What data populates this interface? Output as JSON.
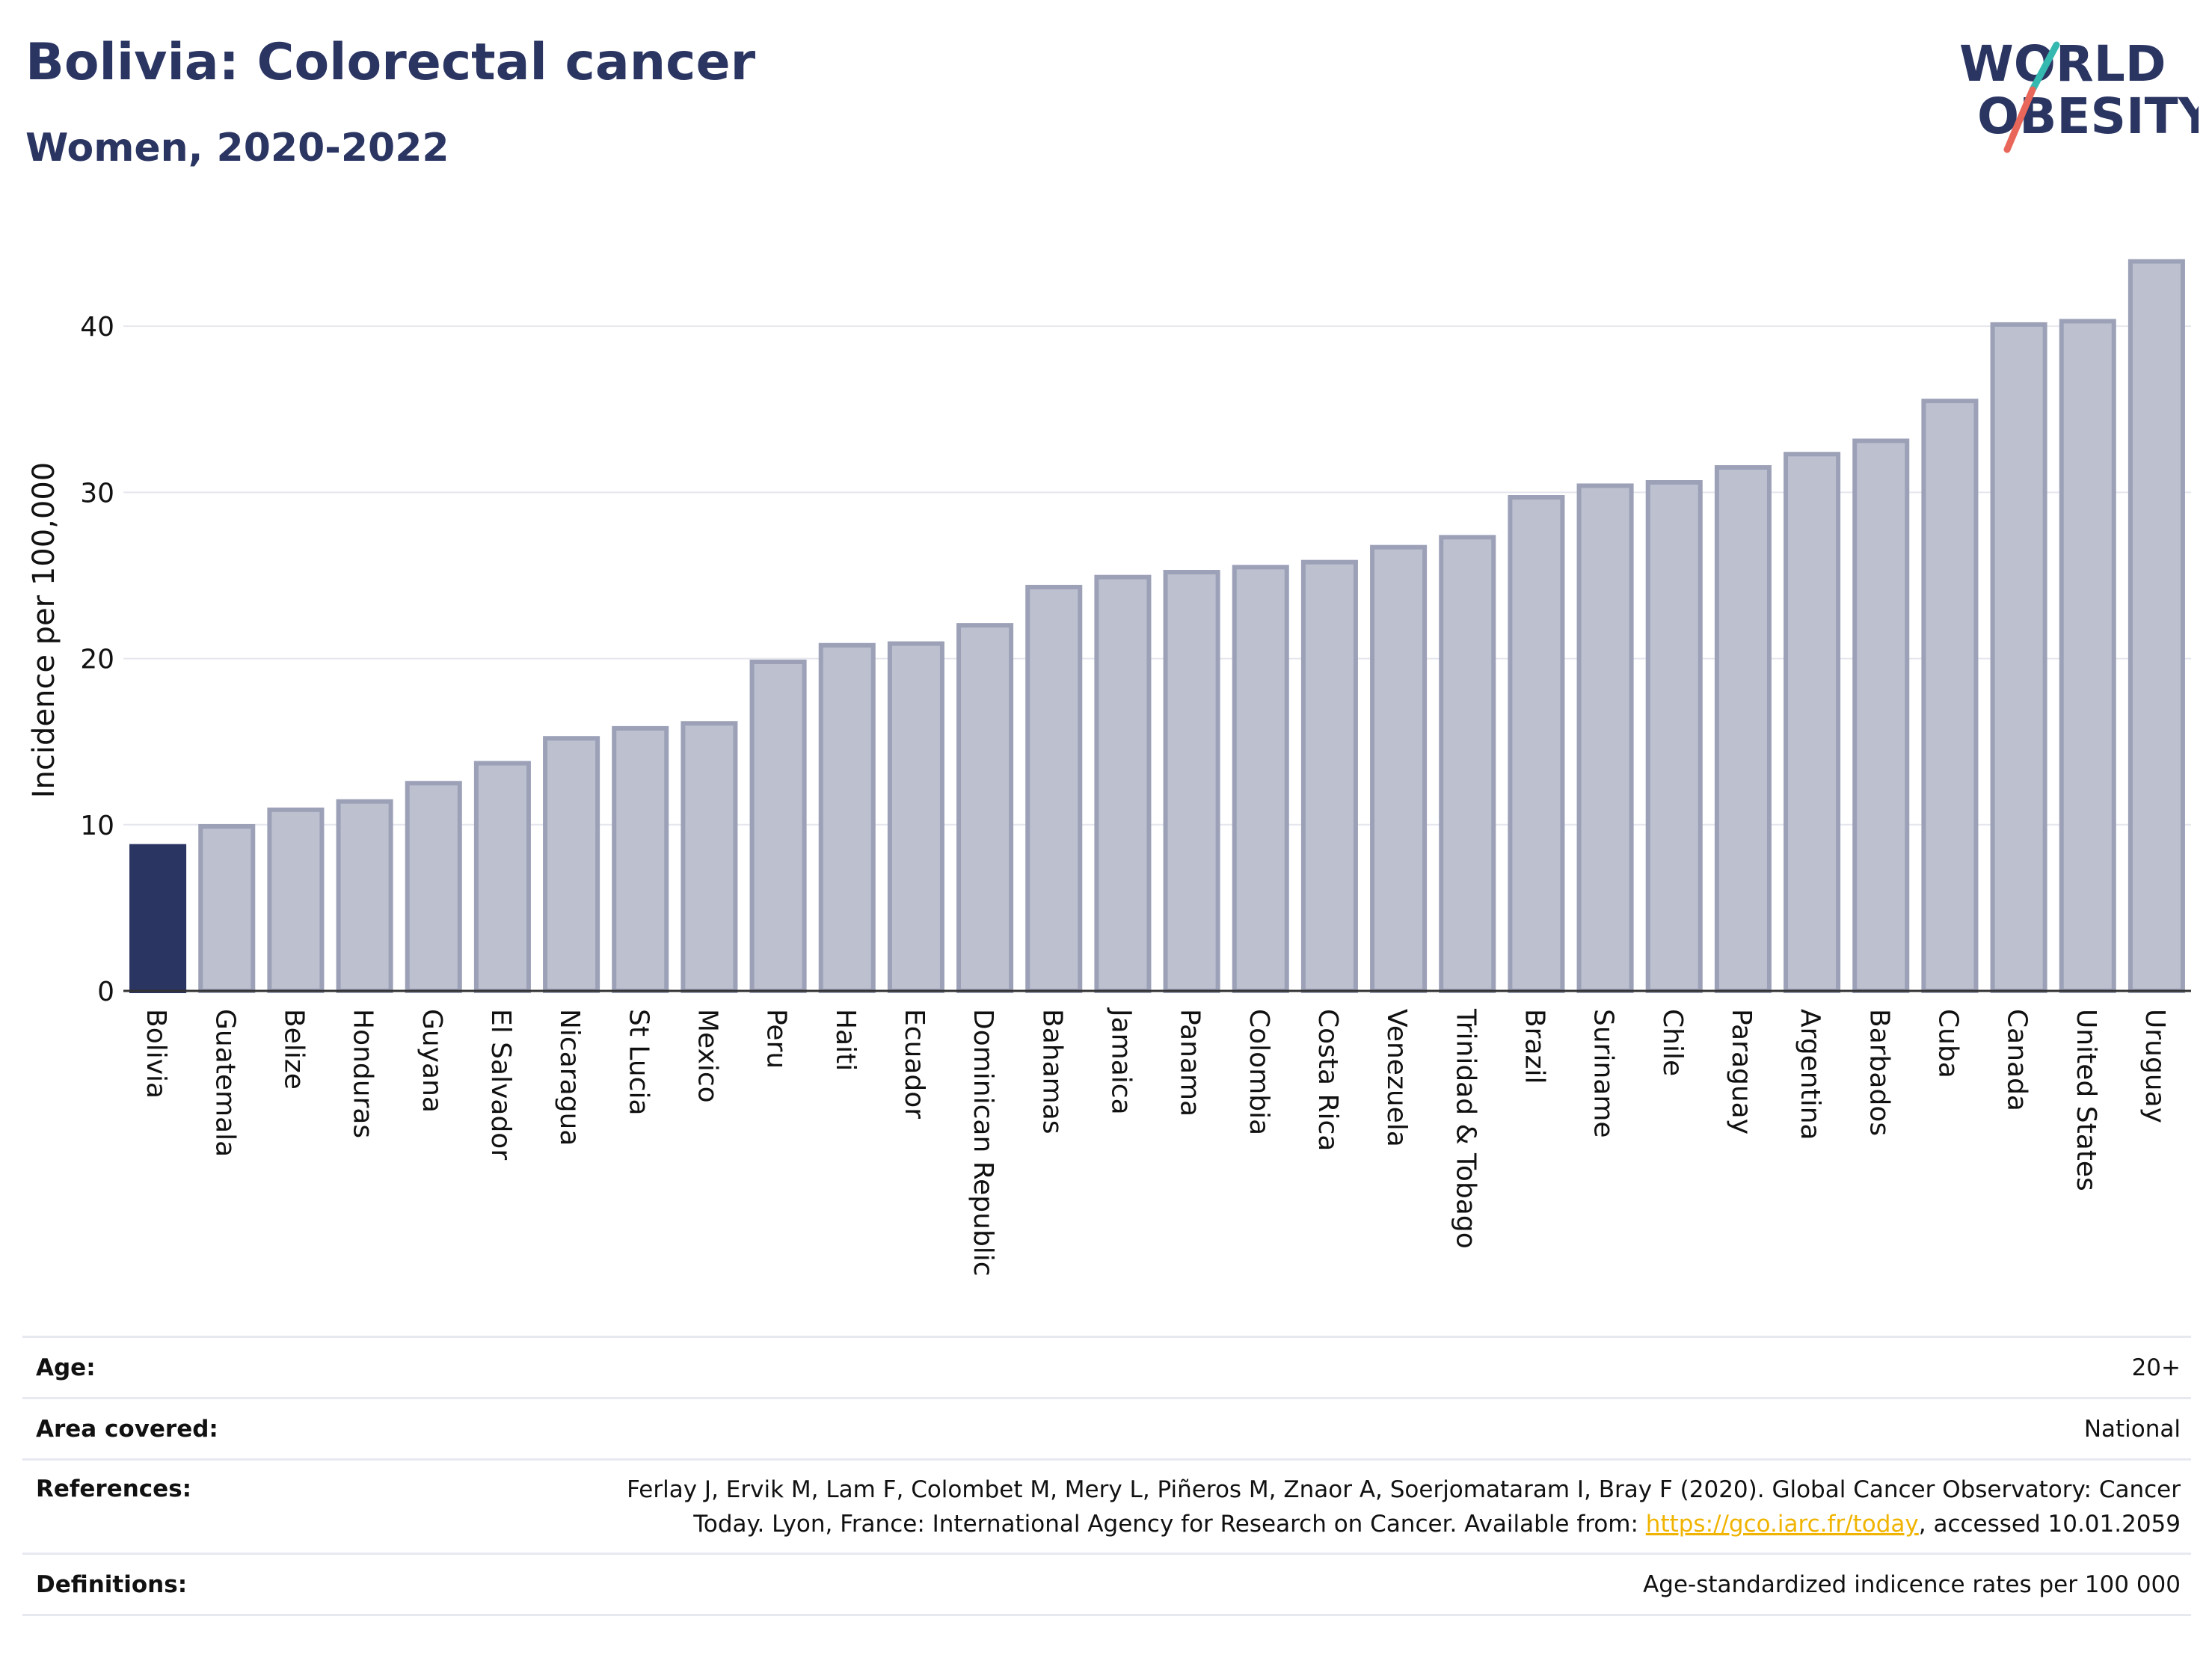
{
  "header": {
    "title": "Bolivia: Colorectal cancer",
    "subtitle": "Women, 2020-2022",
    "logo_line1": "WORLD",
    "logo_line2": "OBESITY"
  },
  "colors": {
    "highlight": "#2b3562",
    "bar_fill": "#bcc0cf",
    "bar_stroke": "#9ca1b8",
    "grid": "#e6e7ee",
    "logo_teal": "#35b8b0",
    "logo_coral": "#e8665a",
    "link": "#f0b400"
  },
  "chart_data": {
    "type": "bar",
    "ylabel": "Incidence per 100,000",
    "xlabel": "",
    "ylim": [
      0,
      45
    ],
    "yticks": [
      0,
      10,
      20,
      30,
      40
    ],
    "grid": true,
    "highlight_category": "Bolivia",
    "categories": [
      "Bolivia",
      "Guatemala",
      "Belize",
      "Honduras",
      "Guyana",
      "El Salvador",
      "Nicaragua",
      "St Lucia",
      "Mexico",
      "Peru",
      "Haiti",
      "Ecuador",
      "Dominican Republic",
      "Bahamas",
      "Jamaica",
      "Panama",
      "Colombia",
      "Costa Rica",
      "Venezuela",
      "Trinidad & Tobago",
      "Brazil",
      "Suriname",
      "Chile",
      "Paraguay",
      "Argentina",
      "Barbados",
      "Cuba",
      "Canada",
      "United States",
      "Uruguay"
    ],
    "values": [
      8.7,
      9.9,
      10.9,
      11.4,
      12.5,
      13.7,
      15.2,
      15.8,
      16.1,
      19.8,
      20.8,
      20.9,
      22.0,
      24.3,
      24.9,
      25.2,
      25.5,
      25.8,
      26.7,
      27.3,
      29.7,
      30.4,
      30.6,
      31.5,
      32.3,
      33.1,
      35.5,
      40.1,
      40.3,
      43.9
    ]
  },
  "meta": {
    "age_label": "Age:",
    "age_value": "20+",
    "area_label": "Area covered:",
    "area_value": "National",
    "references_label": "References:",
    "references_text_1": "Ferlay J, Ervik M, Lam F, Colombet M, Mery L, Piñeros M, Znaor A, Soerjomataram I, Bray F (2020). Global Cancer Observatory: Cancer Today. Lyon, France: International Agency for Research on Cancer. Available from: ",
    "references_link": "https://gco.iarc.fr/today",
    "references_text_2": ", accessed 10.01.2059",
    "definitions_label": "Definitions:",
    "definitions_value": "Age-standardized indicence rates per 100 000"
  }
}
